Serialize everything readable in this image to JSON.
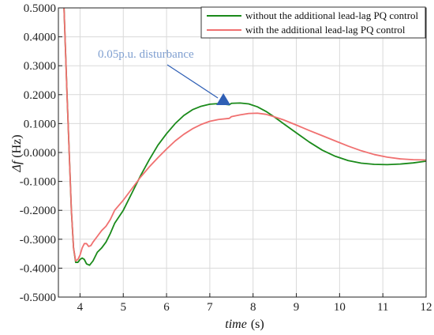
{
  "chart_data": {
    "type": "line",
    "title": "",
    "xlabel": "time",
    "xlabel_unit": "(s)",
    "ylabel": "Δf",
    "ylabel_unit": "(Hz)",
    "xlim": [
      3.5,
      12
    ],
    "ylim": [
      -0.5,
      0.5
    ],
    "x_ticks": [
      4,
      5,
      6,
      7,
      8,
      9,
      10,
      11,
      12
    ],
    "y_ticks": [
      -0.5,
      -0.4,
      -0.3,
      -0.2,
      -0.1,
      0.0,
      0.1,
      0.2,
      0.3,
      0.4,
      0.5
    ],
    "y_tick_labels": [
      "-0.5000",
      "-0.4000",
      "-0.3000",
      "-0.2000",
      "-0.1000",
      "0.0000",
      "0.1000",
      "0.2000",
      "0.3000",
      "0.4000",
      "0.5000"
    ],
    "grid": true,
    "legend_position": "top-right",
    "series": [
      {
        "name": "without the additional lead-lag PQ control",
        "color": "#1a8a1a",
        "points": [
          [
            3.63,
            0.5
          ],
          [
            3.7,
            0.2
          ],
          [
            3.75,
            0.0
          ],
          [
            3.8,
            -0.2
          ],
          [
            3.85,
            -0.33
          ],
          [
            3.9,
            -0.38
          ],
          [
            3.95,
            -0.38
          ],
          [
            4.0,
            -0.37
          ],
          [
            4.05,
            -0.365
          ],
          [
            4.1,
            -0.37
          ],
          [
            4.15,
            -0.385
          ],
          [
            4.22,
            -0.39
          ],
          [
            4.3,
            -0.375
          ],
          [
            4.4,
            -0.345
          ],
          [
            4.5,
            -0.33
          ],
          [
            4.6,
            -0.31
          ],
          [
            4.7,
            -0.28
          ],
          [
            4.8,
            -0.245
          ],
          [
            5.0,
            -0.2
          ],
          [
            5.2,
            -0.14
          ],
          [
            5.4,
            -0.08
          ],
          [
            5.6,
            -0.025
          ],
          [
            5.8,
            0.025
          ],
          [
            6.0,
            0.065
          ],
          [
            6.2,
            0.1
          ],
          [
            6.4,
            0.128
          ],
          [
            6.6,
            0.148
          ],
          [
            6.8,
            0.16
          ],
          [
            7.0,
            0.167
          ],
          [
            7.2,
            0.169
          ],
          [
            7.45,
            0.165
          ],
          [
            7.5,
            0.17
          ],
          [
            7.7,
            0.171
          ],
          [
            7.9,
            0.168
          ],
          [
            8.1,
            0.158
          ],
          [
            8.3,
            0.142
          ],
          [
            8.5,
            0.122
          ],
          [
            8.7,
            0.1
          ],
          [
            9.0,
            0.068
          ],
          [
            9.3,
            0.036
          ],
          [
            9.6,
            0.008
          ],
          [
            9.9,
            -0.013
          ],
          [
            10.2,
            -0.028
          ],
          [
            10.5,
            -0.037
          ],
          [
            10.8,
            -0.041
          ],
          [
            11.1,
            -0.042
          ],
          [
            11.4,
            -0.04
          ],
          [
            11.7,
            -0.036
          ],
          [
            12.0,
            -0.03
          ]
        ]
      },
      {
        "name": "with the additional lead-lag PQ control",
        "color": "#f07070",
        "points": [
          [
            3.63,
            0.5
          ],
          [
            3.7,
            0.2
          ],
          [
            3.75,
            0.0
          ],
          [
            3.8,
            -0.2
          ],
          [
            3.85,
            -0.33
          ],
          [
            3.9,
            -0.375
          ],
          [
            3.95,
            -0.37
          ],
          [
            4.0,
            -0.355
          ],
          [
            4.05,
            -0.33
          ],
          [
            4.1,
            -0.315
          ],
          [
            4.15,
            -0.315
          ],
          [
            4.2,
            -0.325
          ],
          [
            4.25,
            -0.322
          ],
          [
            4.3,
            -0.31
          ],
          [
            4.4,
            -0.29
          ],
          [
            4.5,
            -0.27
          ],
          [
            4.6,
            -0.255
          ],
          [
            4.7,
            -0.232
          ],
          [
            4.8,
            -0.2
          ],
          [
            5.0,
            -0.165
          ],
          [
            5.2,
            -0.125
          ],
          [
            5.4,
            -0.085
          ],
          [
            5.6,
            -0.05
          ],
          [
            5.8,
            -0.018
          ],
          [
            6.0,
            0.012
          ],
          [
            6.2,
            0.04
          ],
          [
            6.4,
            0.063
          ],
          [
            6.6,
            0.082
          ],
          [
            6.8,
            0.097
          ],
          [
            7.0,
            0.108
          ],
          [
            7.2,
            0.114
          ],
          [
            7.45,
            0.118
          ],
          [
            7.5,
            0.124
          ],
          [
            7.7,
            0.13
          ],
          [
            7.9,
            0.135
          ],
          [
            8.1,
            0.136
          ],
          [
            8.3,
            0.132
          ],
          [
            8.5,
            0.123
          ],
          [
            8.7,
            0.113
          ],
          [
            9.0,
            0.095
          ],
          [
            9.3,
            0.076
          ],
          [
            9.6,
            0.058
          ],
          [
            9.9,
            0.04
          ],
          [
            10.2,
            0.022
          ],
          [
            10.5,
            0.006
          ],
          [
            10.8,
            -0.007
          ],
          [
            11.1,
            -0.016
          ],
          [
            11.4,
            -0.022
          ],
          [
            11.7,
            -0.025
          ],
          [
            12.0,
            -0.026
          ]
        ]
      }
    ],
    "annotation": {
      "text": "0.05p.u. disturbance",
      "color": "#7f9fd0",
      "arrow_color": "#2f5fb5",
      "target": [
        7.35,
        0.175
      ]
    }
  }
}
